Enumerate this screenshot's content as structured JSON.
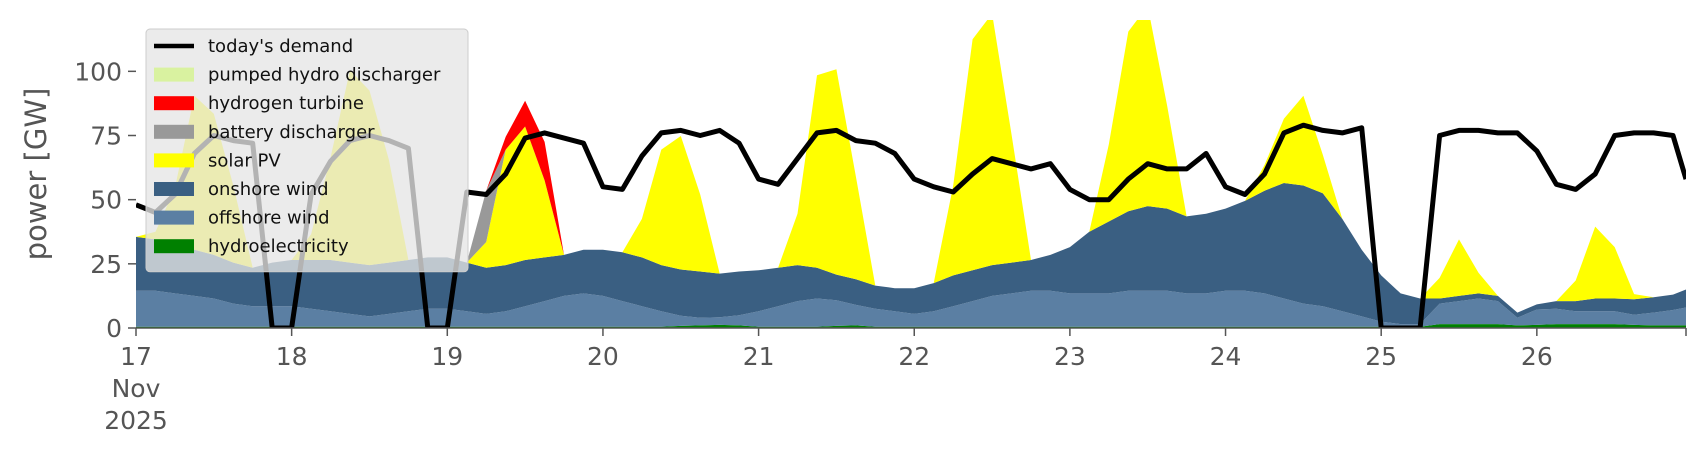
{
  "chart_data": {
    "type": "area",
    "ylabel": "power [GW]",
    "ylim": [
      0,
      120
    ],
    "xlim": [
      "2025-11-17T00:00",
      "2025-11-26T23:00"
    ],
    "yticks": [
      0,
      25,
      50,
      75,
      100
    ],
    "xticks": [
      {
        "x": "2025-11-17",
        "label": "17",
        "sub1": "Nov",
        "sub2": "2025"
      },
      {
        "x": "2025-11-18",
        "label": "18"
      },
      {
        "x": "2025-11-19",
        "label": "19"
      },
      {
        "x": "2025-11-20",
        "label": "20"
      },
      {
        "x": "2025-11-21",
        "label": "21"
      },
      {
        "x": "2025-11-22",
        "label": "22"
      },
      {
        "x": "2025-11-23",
        "label": "23"
      },
      {
        "x": "2025-11-24",
        "label": "24"
      },
      {
        "x": "2025-11-25",
        "label": "25"
      },
      {
        "x": "2025-11-26",
        "label": "26"
      }
    ],
    "grid": false,
    "legend_position": "top-left",
    "x": [
      "2025-11-17T00:00",
      "2025-11-17T03:00",
      "2025-11-17T06:00",
      "2025-11-17T09:00",
      "2025-11-17T12:00",
      "2025-11-17T15:00",
      "2025-11-17T18:00",
      "2025-11-17T21:00",
      "2025-11-18T00:00",
      "2025-11-18T03:00",
      "2025-11-18T06:00",
      "2025-11-18T09:00",
      "2025-11-18T12:00",
      "2025-11-18T15:00",
      "2025-11-18T18:00",
      "2025-11-18T21:00",
      "2025-11-19T00:00",
      "2025-11-19T03:00",
      "2025-11-19T06:00",
      "2025-11-19T09:00",
      "2025-11-19T12:00",
      "2025-11-19T15:00",
      "2025-11-19T18:00",
      "2025-11-19T21:00",
      "2025-11-20T00:00",
      "2025-11-20T03:00",
      "2025-11-20T06:00",
      "2025-11-20T09:00",
      "2025-11-20T12:00",
      "2025-11-20T15:00",
      "2025-11-20T18:00",
      "2025-11-20T21:00",
      "2025-11-21T00:00",
      "2025-11-21T03:00",
      "2025-11-21T06:00",
      "2025-11-21T09:00",
      "2025-11-21T12:00",
      "2025-11-21T15:00",
      "2025-11-21T18:00",
      "2025-11-21T21:00",
      "2025-11-22T00:00",
      "2025-11-22T03:00",
      "2025-11-22T06:00",
      "2025-11-22T09:00",
      "2025-11-22T12:00",
      "2025-11-22T15:00",
      "2025-11-22T18:00",
      "2025-11-22T21:00",
      "2025-11-23T00:00",
      "2025-11-23T03:00",
      "2025-11-23T06:00",
      "2025-11-23T09:00",
      "2025-11-23T12:00",
      "2025-11-23T15:00",
      "2025-11-23T18:00",
      "2025-11-23T21:00",
      "2025-11-24T00:00",
      "2025-11-24T03:00",
      "2025-11-24T06:00",
      "2025-11-24T09:00",
      "2025-11-24T12:00",
      "2025-11-24T15:00",
      "2025-11-24T18:00",
      "2025-11-24T21:00",
      "2025-11-25T00:00",
      "2025-11-25T03:00",
      "2025-11-25T06:00",
      "2025-11-25T09:00",
      "2025-11-25T12:00",
      "2025-11-25T15:00",
      "2025-11-25T18:00",
      "2025-11-25T21:00",
      "2025-11-26T00:00",
      "2025-11-26T03:00",
      "2025-11-26T06:00",
      "2025-11-26T09:00",
      "2025-11-26T12:00",
      "2025-11-26T15:00",
      "2025-11-26T18:00",
      "2025-11-26T21:00",
      "2025-11-26T23:00"
    ],
    "series": [
      {
        "name": "hydroelectricity",
        "color": "#008000",
        "values": [
          0.5,
          0.5,
          0.5,
          0.5,
          0.5,
          0.5,
          0.5,
          0.5,
          0.5,
          0.5,
          0.5,
          0.5,
          0.5,
          0.5,
          0.5,
          0.5,
          0.5,
          0.5,
          0.5,
          0.5,
          0.5,
          0.5,
          0.5,
          0.5,
          0.5,
          0.5,
          0.5,
          0.5,
          0.8,
          1.0,
          1.2,
          1.0,
          0.5,
          0.5,
          0.5,
          0.5,
          0.8,
          1.0,
          0.5,
          0.5,
          0.5,
          0.5,
          0.5,
          0.5,
          0.5,
          0.5,
          0.5,
          0.5,
          0.5,
          0.5,
          0.5,
          0.5,
          0.5,
          0.5,
          0.5,
          0.5,
          0.5,
          0.5,
          0.5,
          0.5,
          0.5,
          0.5,
          0.5,
          0.5,
          0.5,
          0.5,
          0.5,
          1.5,
          1.5,
          1.5,
          1.5,
          1.0,
          1.2,
          1.5,
          1.5,
          1.5,
          1.5,
          1.2,
          1.0,
          1.0,
          1.0
        ]
      },
      {
        "name": "offshore wind",
        "color": "#5b7fa3",
        "values": [
          14,
          14,
          13,
          12,
          11,
          9,
          8,
          8,
          8,
          7,
          6,
          5,
          4,
          5,
          6,
          7,
          7,
          6,
          5,
          6,
          8,
          10,
          12,
          13,
          12,
          10,
          8,
          6,
          4,
          3,
          3,
          4,
          6,
          8,
          10,
          11,
          10,
          8,
          7,
          6,
          5,
          6,
          8,
          10,
          12,
          13,
          14,
          14,
          13,
          13,
          13,
          14,
          14,
          14,
          13,
          13,
          14,
          14,
          13,
          11,
          9,
          8,
          6,
          4,
          2,
          1,
          1,
          8,
          9,
          10,
          9,
          3,
          6,
          6,
          5,
          5,
          5,
          4,
          5,
          6,
          7
        ]
      },
      {
        "name": "onshore wind",
        "color": "#3a5f82",
        "values": [
          21,
          20,
          19,
          18,
          17,
          16,
          15,
          17,
          18,
          19,
          20,
          20,
          20,
          20,
          20,
          20,
          20,
          19,
          18,
          18,
          18,
          17,
          16,
          17,
          18,
          19,
          19,
          18,
          18,
          18,
          17,
          17,
          16,
          15,
          14,
          12,
          10,
          10,
          9,
          9,
          10,
          11,
          12,
          12,
          12,
          12,
          12,
          14,
          18,
          24,
          28,
          31,
          33,
          32,
          30,
          31,
          32,
          35,
          40,
          45,
          46,
          44,
          36,
          26,
          18,
          12,
          10,
          2,
          2,
          2,
          2,
          2,
          2,
          3,
          4,
          5,
          5,
          6,
          6,
          6,
          7
        ]
      },
      {
        "name": "solar PV",
        "color": "#ffff00",
        "values": [
          0,
          3,
          22,
          60,
          55,
          30,
          0,
          0,
          0,
          10,
          40,
          75,
          68,
          40,
          0,
          0,
          0,
          0,
          10,
          45,
          52,
          30,
          0,
          0,
          0,
          0,
          15,
          45,
          52,
          30,
          0,
          0,
          0,
          0,
          20,
          75,
          80,
          40,
          0,
          0,
          0,
          0,
          35,
          90,
          98,
          50,
          0,
          0,
          0,
          0,
          30,
          70,
          78,
          40,
          0,
          0,
          0,
          0,
          10,
          25,
          35,
          15,
          0,
          0,
          0,
          0,
          0,
          8,
          22,
          8,
          0,
          0,
          0,
          0,
          8,
          28,
          20,
          2,
          0,
          0,
          0
        ]
      },
      {
        "name": "battery discharger",
        "color": "#999999",
        "values": [
          0,
          0,
          0,
          0,
          0,
          0,
          0,
          0,
          0,
          0,
          0,
          0,
          0,
          0,
          0,
          0,
          0,
          0,
          20,
          0,
          0,
          0,
          0,
          0,
          0,
          0,
          0,
          0,
          0,
          0,
          0,
          0,
          0,
          0,
          0,
          0,
          0,
          0,
          0,
          0,
          0,
          0,
          0,
          0,
          0,
          0,
          0,
          0,
          0,
          0,
          0,
          0,
          0,
          0,
          0,
          0,
          0,
          0,
          0,
          0,
          0,
          0,
          0,
          0,
          0,
          0,
          0,
          0,
          0,
          0,
          0,
          0,
          0,
          0,
          0,
          0,
          0,
          0,
          0,
          0,
          0
        ]
      },
      {
        "name": "hydrogen turbine",
        "color": "#ff0000",
        "values": [
          0,
          0,
          0,
          0,
          0,
          0,
          0,
          0,
          0,
          0,
          0,
          0,
          0,
          0,
          0,
          0,
          0,
          0,
          0,
          5,
          10,
          15,
          0,
          0,
          0,
          0,
          0,
          0,
          0,
          0,
          0,
          0,
          0,
          0,
          0,
          0,
          0,
          0,
          0,
          0,
          0,
          0,
          0,
          0,
          0,
          0,
          0,
          0,
          0,
          0,
          0,
          0,
          0,
          0,
          0,
          0,
          0,
          0,
          0,
          0,
          0,
          0,
          0,
          0,
          0,
          0,
          0,
          0,
          0,
          0,
          0,
          0,
          0,
          0,
          0,
          0,
          0,
          0,
          0,
          0,
          0
        ]
      },
      {
        "name": "pumped hydro discharger",
        "color": "#d9f2a0",
        "values": [
          0,
          0,
          0,
          0,
          0,
          0,
          0,
          0,
          0,
          0,
          0,
          0,
          0,
          0,
          0,
          0,
          0,
          0,
          0,
          0,
          0,
          0,
          0,
          0,
          0,
          0,
          0,
          0,
          0,
          0,
          0,
          0,
          0,
          0,
          0,
          0,
          0,
          0,
          0,
          0,
          0,
          0,
          0,
          0,
          0,
          0,
          0,
          0,
          0,
          0,
          0,
          0,
          0,
          0,
          0,
          0,
          0,
          0,
          0,
          0,
          0,
          0,
          0,
          0,
          0,
          0,
          0,
          0,
          0,
          0,
          0,
          0,
          0,
          0,
          0,
          0,
          0,
          0,
          0,
          0,
          0
        ]
      }
    ],
    "demand": {
      "name": "today's demand",
      "color": "#000000",
      "values": [
        48,
        45,
        52,
        68,
        75,
        73,
        72,
        0,
        0,
        52,
        65,
        73,
        75,
        73,
        70,
        0,
        0,
        53,
        52,
        60,
        74,
        76,
        74,
        72,
        55,
        54,
        67,
        76,
        77,
        75,
        77,
        72,
        58,
        56,
        66,
        76,
        77,
        73,
        72,
        68,
        58,
        55,
        53,
        60,
        66,
        64,
        62,
        64,
        54,
        50,
        50,
        58,
        64,
        62,
        62,
        68,
        55,
        52,
        60,
        76,
        79,
        77,
        76,
        78,
        0,
        0,
        0,
        75,
        77,
        77,
        76,
        76,
        69,
        56,
        54,
        60,
        75,
        76,
        76,
        75,
        58
      ]
    },
    "legend": [
      {
        "label": "today's demand",
        "kind": "line",
        "color": "#000000"
      },
      {
        "label": "pumped hydro discharger",
        "kind": "patch",
        "color": "#d9f2a0"
      },
      {
        "label": "hydrogen turbine",
        "kind": "patch",
        "color": "#ff0000"
      },
      {
        "label": "battery discharger",
        "kind": "patch",
        "color": "#999999"
      },
      {
        "label": "solar PV",
        "kind": "patch",
        "color": "#ffff00"
      },
      {
        "label": "onshore wind",
        "kind": "patch",
        "color": "#3a5f82"
      },
      {
        "label": "offshore wind",
        "kind": "patch",
        "color": "#5b7fa3"
      },
      {
        "label": "hydroelectricity",
        "kind": "patch",
        "color": "#008000"
      }
    ]
  }
}
